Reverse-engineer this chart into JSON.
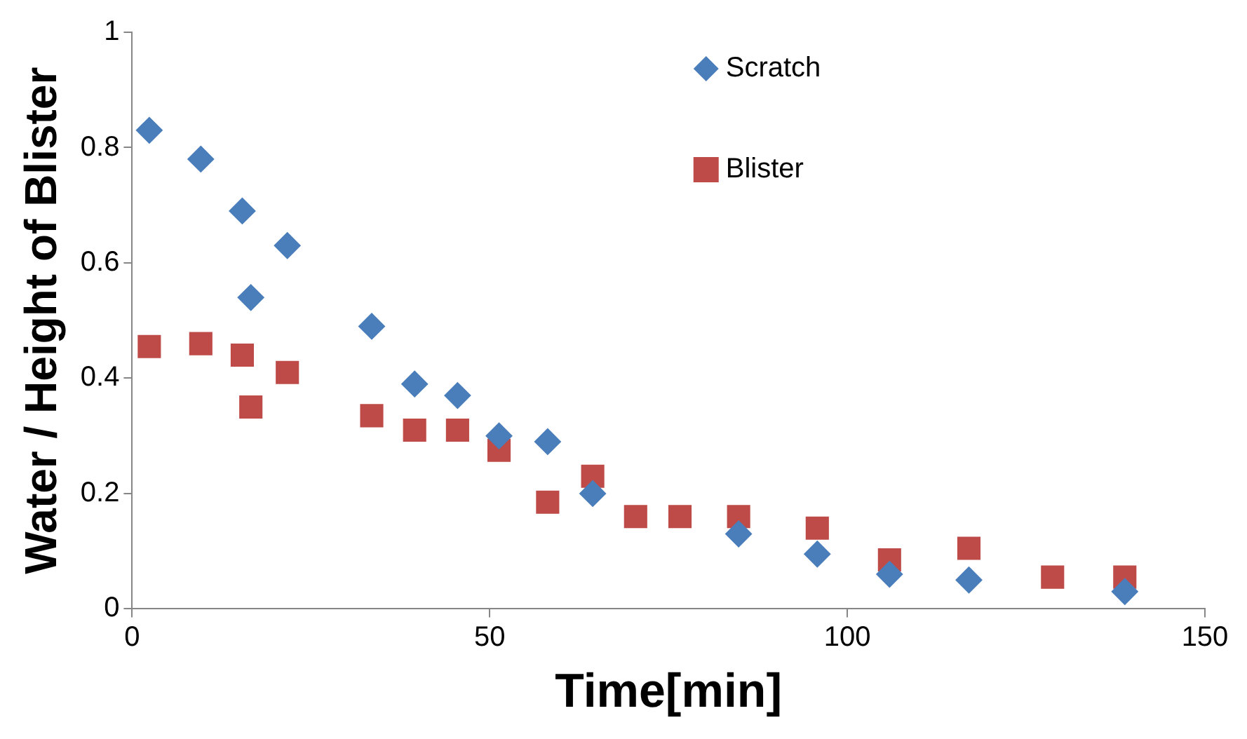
{
  "chart_data": {
    "type": "scatter",
    "xlabel": "Time[min]",
    "ylabel": "Water / Height of Blister",
    "xlim": [
      0,
      150
    ],
    "xticks": [
      0,
      50,
      100,
      150
    ],
    "ylim": [
      0,
      1
    ],
    "yticks": [
      0,
      0.2,
      0.4,
      0.6,
      0.8,
      1
    ],
    "grid": false,
    "legend": "top",
    "series": [
      {
        "name": "Scratch",
        "color": "#4a7ebb",
        "marker": "diamond",
        "x": [
          2.4,
          9.6,
          15.4,
          16.6,
          21.7,
          33.5,
          39.5,
          45.5,
          51.3,
          58.1,
          64.4,
          84.8,
          95.8,
          105.9,
          117,
          138.8
        ],
        "values": [
          0.83,
          0.78,
          0.69,
          0.54,
          0.63,
          0.49,
          0.39,
          0.37,
          0.3,
          0.29,
          0.2,
          0.13,
          0.095,
          0.06,
          0.05,
          0.03
        ]
      },
      {
        "name": "Blister",
        "color": "#be4b48",
        "marker": "square",
        "x": [
          2.4,
          9.6,
          15.4,
          16.6,
          21.7,
          33.5,
          39.5,
          45.5,
          51.3,
          58.1,
          64.4,
          70.4,
          76.6,
          84.8,
          95.8,
          105.9,
          117,
          128.7,
          138.8
        ],
        "values": [
          0.455,
          0.46,
          0.44,
          0.35,
          0.41,
          0.335,
          0.31,
          0.31,
          0.275,
          0.185,
          0.23,
          0.16,
          0.16,
          0.16,
          0.14,
          0.085,
          0.105,
          0.055,
          0.055
        ]
      }
    ]
  }
}
